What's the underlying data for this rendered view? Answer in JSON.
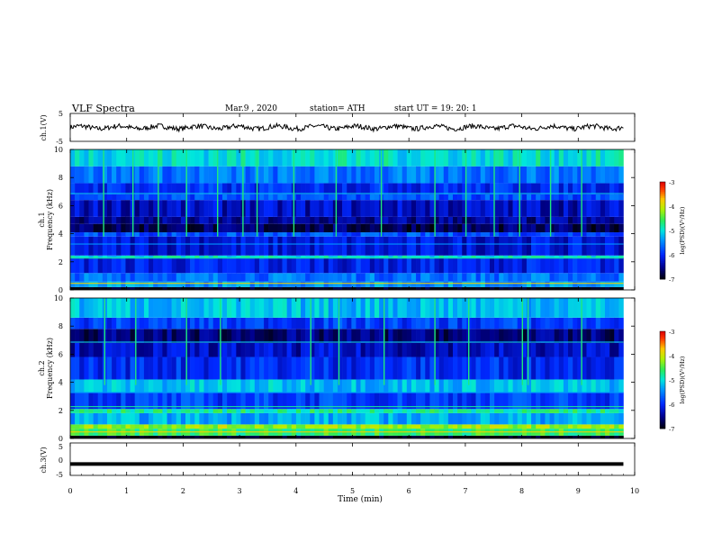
{
  "header": {
    "title": "VLF Spectra",
    "date": "Mar.9 , 2020",
    "station": "station= ATH",
    "start": "start UT = 19: 20: 1"
  },
  "chart_data": [
    {
      "type": "line",
      "name": "ch1-waveform",
      "ylabel": "ch.1(V)",
      "ylim": [
        -5,
        5
      ],
      "yticks": [
        "5",
        "-5"
      ],
      "x_range_min": [
        0,
        10
      ],
      "data_extent_min": 9.8,
      "description_level_V": 0
    },
    {
      "type": "heatmap",
      "name": "ch1-spectrogram",
      "ylabel_line1": "ch.1",
      "ylabel_line2": "Frequency (kHz)",
      "ylim": [
        0,
        10
      ],
      "yticks": [
        "0",
        "2",
        "4",
        "6",
        "8",
        "10"
      ],
      "colorbar": {
        "label": "log(PSD)(V²/Hz)",
        "ticks": [
          "-3",
          "-4",
          "-5",
          "-6",
          "-7"
        ],
        "range": [
          -7,
          -3
        ]
      },
      "bands": [
        {
          "f0": 0,
          "f1": 0.2,
          "v": -7
        },
        {
          "f0": 0.2,
          "f1": 0.6,
          "v": -5.4
        },
        {
          "f0": 0.6,
          "f1": 1.2,
          "v": -5.6
        },
        {
          "f0": 1.2,
          "f1": 2.3,
          "v": -6.1
        },
        {
          "f0": 2.3,
          "f1": 2.45,
          "v": -5.0
        },
        {
          "f0": 2.45,
          "f1": 3.8,
          "v": -6.2
        },
        {
          "f0": 3.8,
          "f1": 4.1,
          "v": -5.8
        },
        {
          "f0": 4.1,
          "f1": 4.7,
          "v": -6.7
        },
        {
          "f0": 4.7,
          "f1": 5.2,
          "v": -6.5
        },
        {
          "f0": 5.2,
          "f1": 6.4,
          "v": -6.3
        },
        {
          "f0": 6.4,
          "f1": 6.8,
          "v": -5.8
        },
        {
          "f0": 6.8,
          "f1": 7.6,
          "v": -6.0
        },
        {
          "f0": 7.6,
          "f1": 8.8,
          "v": -5.6
        },
        {
          "f0": 8.8,
          "f1": 10,
          "v": -5.0
        }
      ],
      "spikes_min": [
        0.58,
        1.1,
        1.55,
        2.05,
        2.6,
        3.05,
        3.3,
        3.95,
        4.7,
        5.5,
        6.45,
        7.0,
        7.5,
        7.95,
        8.5,
        9.05
      ]
    },
    {
      "type": "heatmap",
      "name": "ch2-spectrogram",
      "ylabel_line1": "ch.2",
      "ylabel_line2": "Frequency (kHz)",
      "ylim": [
        0,
        10
      ],
      "yticks": [
        "0",
        "2",
        "4",
        "6",
        "8",
        "10"
      ],
      "colorbar": {
        "label": "log(PSD)(V²/Hz)",
        "ticks": [
          "-3",
          "-4",
          "-5",
          "-6",
          "-7"
        ],
        "range": [
          -7,
          -3
        ]
      },
      "bands": [
        {
          "f0": 0,
          "f1": 0.2,
          "v": -7
        },
        {
          "f0": 0.2,
          "f1": 0.7,
          "v": -4.6
        },
        {
          "f0": 0.7,
          "f1": 1.0,
          "v": -4.2
        },
        {
          "f0": 1.0,
          "f1": 1.8,
          "v": -5.3
        },
        {
          "f0": 1.8,
          "f1": 2.1,
          "v": -4.8
        },
        {
          "f0": 2.1,
          "f1": 3.3,
          "v": -5.9
        },
        {
          "f0": 3.3,
          "f1": 4.2,
          "v": -5.2
        },
        {
          "f0": 4.2,
          "f1": 5.8,
          "v": -6.0
        },
        {
          "f0": 5.8,
          "f1": 6.8,
          "v": -6.3
        },
        {
          "f0": 6.8,
          "f1": 7.8,
          "v": -6.6
        },
        {
          "f0": 7.8,
          "f1": 8.6,
          "v": -5.9
        },
        {
          "f0": 8.6,
          "f1": 10,
          "v": -5.2
        }
      ],
      "spikes_min": [
        0.6,
        1.15,
        2.05,
        2.65,
        4.25,
        4.75,
        5.55,
        6.45,
        7.05,
        8.0,
        8.1,
        9.05
      ]
    },
    {
      "type": "line",
      "name": "ch3-waveform",
      "ylabel": "ch.3(V)",
      "ylim": [
        -5,
        5
      ],
      "yticks": [
        "5",
        "0",
        "-5"
      ],
      "level_V": -1.5,
      "data_extent_min": 9.8
    }
  ],
  "xaxis": {
    "label": "Time (min)",
    "ticks": [
      "0",
      "1",
      "2",
      "3",
      "4",
      "5",
      "6",
      "7",
      "8",
      "9",
      "10"
    ],
    "xlim": [
      0,
      10
    ]
  }
}
